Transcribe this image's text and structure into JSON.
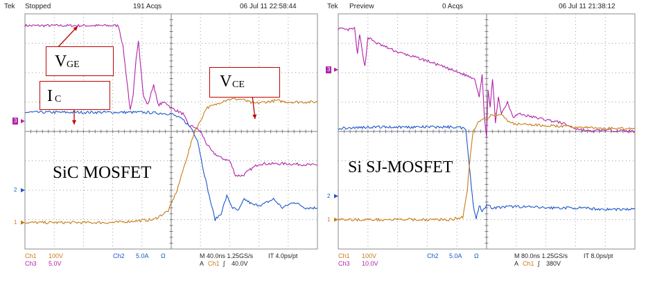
{
  "colors": {
    "ch1": "#c87a14",
    "ch2": "#1a55c9",
    "ch3": "#b020a8",
    "grid": "#9a9a9a",
    "label_border": "#c00000",
    "arrow": "#c00000"
  },
  "chart_data": [
    {
      "type": "line",
      "title": "SiC MOSFET",
      "header": {
        "brand": "Tek",
        "state": "Stopped",
        "acqs": "191 Acqs",
        "datetime": "06 Jul 11 22:58:44"
      },
      "x": {
        "divisions": 10,
        "unit": "ns",
        "per_div": 40.0
      },
      "y": {
        "divisions": 8
      },
      "ground_markers": [
        {
          "label": "1",
          "channel": "ch1",
          "div": -3.1
        },
        {
          "label": "2",
          "channel": "ch2",
          "div": -2.0
        },
        {
          "label": "3",
          "channel": "ch3",
          "div": 0.35
        }
      ],
      "series": [
        {
          "name": "VGE",
          "channel": "ch3",
          "points": [
            [
              0,
              3.6
            ],
            [
              3.2,
              3.6
            ],
            [
              3.35,
              2.9
            ],
            [
              3.5,
              1.6
            ],
            [
              3.6,
              0.7
            ],
            [
              3.7,
              1.2
            ],
            [
              3.8,
              2.5
            ],
            [
              3.88,
              3.1
            ],
            [
              3.95,
              2.3
            ],
            [
              4.05,
              1.2
            ],
            [
              4.2,
              0.9
            ],
            [
              4.4,
              1.6
            ],
            [
              4.55,
              0.9
            ],
            [
              4.8,
              1.0
            ],
            [
              5.0,
              0.8
            ],
            [
              5.4,
              0.6
            ],
            [
              5.6,
              0.2
            ],
            [
              5.8,
              0.15
            ],
            [
              6.0,
              0.0
            ],
            [
              6.2,
              -0.4
            ],
            [
              6.4,
              -0.7
            ],
            [
              6.7,
              -0.9
            ],
            [
              7.0,
              -1.0
            ],
            [
              7.2,
              -1.5
            ],
            [
              7.45,
              -1.5
            ],
            [
              7.7,
              -1.3
            ],
            [
              8.0,
              -1.1
            ],
            [
              8.5,
              -1.1
            ],
            [
              9.0,
              -1.1
            ],
            [
              10,
              -1.15
            ]
          ]
        },
        {
          "name": "IC",
          "channel": "ch2",
          "points": [
            [
              0,
              0.65
            ],
            [
              2,
              0.65
            ],
            [
              4,
              0.65
            ],
            [
              5.0,
              0.6
            ],
            [
              5.4,
              0.4
            ],
            [
              5.7,
              0.1
            ],
            [
              5.9,
              -0.3
            ],
            [
              6.1,
              -1.3
            ],
            [
              6.3,
              -2.2
            ],
            [
              6.5,
              -3.0
            ],
            [
              6.7,
              -2.8
            ],
            [
              6.9,
              -2.2
            ],
            [
              7.1,
              -2.6
            ],
            [
              7.3,
              -2.7
            ],
            [
              7.5,
              -2.3
            ],
            [
              7.8,
              -2.5
            ],
            [
              8.1,
              -2.5
            ],
            [
              8.5,
              -2.3
            ],
            [
              8.8,
              -2.6
            ],
            [
              9.2,
              -2.4
            ],
            [
              9.6,
              -2.6
            ],
            [
              10,
              -2.6
            ]
          ]
        },
        {
          "name": "VCE",
          "channel": "ch1",
          "points": [
            [
              0,
              -3.1
            ],
            [
              3,
              -3.1
            ],
            [
              4.4,
              -3.0
            ],
            [
              4.9,
              -2.7
            ],
            [
              5.2,
              -2.0
            ],
            [
              5.5,
              -1.0
            ],
            [
              5.8,
              0.0
            ],
            [
              6.0,
              0.35
            ],
            [
              6.2,
              0.8
            ],
            [
              6.5,
              0.9
            ],
            [
              6.8,
              1.05
            ],
            [
              7.0,
              1.1
            ],
            [
              7.4,
              1.1
            ],
            [
              7.8,
              0.95
            ],
            [
              8.2,
              1.0
            ],
            [
              8.6,
              1.05
            ],
            [
              9.0,
              1.0
            ],
            [
              10,
              1.0
            ]
          ]
        }
      ],
      "annotations": [
        {
          "id": "VGE",
          "main": "V",
          "sub": "GE"
        },
        {
          "id": "IC",
          "main": "I",
          "sub": "C"
        },
        {
          "id": "VCE",
          "main": "V",
          "sub": "CE"
        }
      ],
      "footer": {
        "ch1": "Ch1",
        "ch1_scale": "100V",
        "ch3": "Ch3",
        "ch3_scale": "5.0V",
        "ch2": "Ch2",
        "ch2_scale": "5.0A",
        "ohm": "Ω",
        "timebase": "M 40.0ns 1.25GS/s",
        "record": "IT 4.0ps/pt",
        "trigger_mode": "A",
        "trigger_channel": "Ch1",
        "trigger_slope": "∫",
        "trigger_level": "40.0V"
      }
    },
    {
      "type": "line",
      "title": "Si SJ-MOSFET",
      "header": {
        "brand": "Tek",
        "state": "Preview",
        "acqs": "0 Acqs",
        "datetime": "06 Jul 11 21:38:12"
      },
      "x": {
        "divisions": 10,
        "unit": "ns",
        "per_div": 80.0
      },
      "y": {
        "divisions": 8
      },
      "ground_markers": [
        {
          "label": "1",
          "channel": "ch1",
          "div": -3.0
        },
        {
          "label": "2",
          "channel": "ch2",
          "div": -2.2
        },
        {
          "label": "3",
          "channel": "ch3",
          "div": 2.1
        }
      ],
      "series": [
        {
          "name": "VGE",
          "channel": "ch3",
          "points": [
            [
              0,
              3.5
            ],
            [
              0.3,
              3.45
            ],
            [
              0.55,
              3.5
            ],
            [
              0.65,
              2.6
            ],
            [
              0.72,
              3.3
            ],
            [
              0.8,
              2.8
            ],
            [
              0.9,
              2.2
            ],
            [
              1.0,
              3.2
            ],
            [
              1.3,
              3.0
            ],
            [
              2,
              2.7
            ],
            [
              3,
              2.4
            ],
            [
              3.8,
              2.1
            ],
            [
              4.2,
              1.95
            ],
            [
              4.6,
              1.8
            ],
            [
              4.75,
              1.2
            ],
            [
              4.85,
              1.9
            ],
            [
              4.92,
              0.6
            ],
            [
              5.0,
              -0.2
            ],
            [
              5.05,
              1.4
            ],
            [
              5.12,
              0.8
            ],
            [
              5.2,
              1.8
            ],
            [
              5.3,
              0.3
            ],
            [
              5.4,
              1.2
            ],
            [
              5.5,
              0.6
            ],
            [
              5.7,
              1.0
            ],
            [
              5.9,
              0.5
            ],
            [
              6.1,
              0.6
            ],
            [
              6.5,
              0.5
            ],
            [
              7,
              0.4
            ],
            [
              7.5,
              0.3
            ],
            [
              8,
              0.1
            ],
            [
              8.5,
              0.0
            ],
            [
              9,
              0.05
            ],
            [
              10,
              0.0
            ]
          ]
        },
        {
          "name": "IC",
          "channel": "ch2",
          "points": [
            [
              0,
              0.1
            ],
            [
              1,
              0.15
            ],
            [
              2,
              0.15
            ],
            [
              3,
              0.15
            ],
            [
              4.0,
              0.15
            ],
            [
              4.3,
              0.1
            ],
            [
              4.45,
              -1.5
            ],
            [
              4.55,
              -2.5
            ],
            [
              4.65,
              -3.0
            ],
            [
              4.75,
              -2.5
            ],
            [
              4.85,
              -2.7
            ],
            [
              5.0,
              -2.5
            ],
            [
              5.2,
              -2.6
            ],
            [
              6,
              -2.55
            ],
            [
              7,
              -2.6
            ],
            [
              8,
              -2.6
            ],
            [
              9,
              -2.65
            ],
            [
              10,
              -2.65
            ]
          ]
        },
        {
          "name": "VCE",
          "channel": "ch1",
          "points": [
            [
              0,
              -3.0
            ],
            [
              2,
              -3.0
            ],
            [
              3.8,
              -3.0
            ],
            [
              4.2,
              -2.9
            ],
            [
              4.35,
              -2.0
            ],
            [
              4.45,
              -0.8
            ],
            [
              4.55,
              0.0
            ],
            [
              4.7,
              0.3
            ],
            [
              4.9,
              0.4
            ],
            [
              5.1,
              0.5
            ],
            [
              5.3,
              0.6
            ],
            [
              5.5,
              0.55
            ],
            [
              5.8,
              0.3
            ],
            [
              6,
              0.25
            ],
            [
              7,
              0.2
            ],
            [
              8,
              0.15
            ],
            [
              9,
              0.1
            ],
            [
              10,
              0.1
            ]
          ]
        }
      ],
      "annotations": [],
      "footer": {
        "ch1": "Ch1",
        "ch1_scale": "100V",
        "ch3": "Ch3",
        "ch3_scale": "10.0V",
        "ch2": "Ch2",
        "ch2_scale": "5.0A",
        "ohm": "Ω",
        "timebase": "M 80.0ns 1.25GS/s",
        "record": "IT 8.0ps/pt",
        "trigger_mode": "A",
        "trigger_channel": "Ch1",
        "trigger_slope": "∫",
        "trigger_level": "380V"
      }
    }
  ]
}
